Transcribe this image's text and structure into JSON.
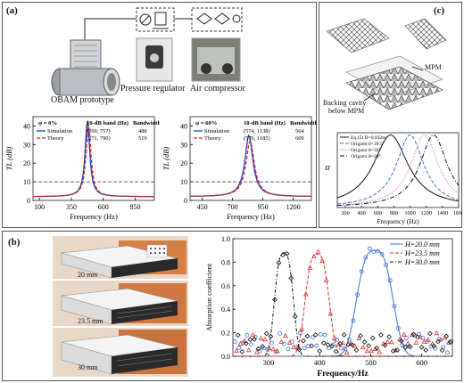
{
  "panel_a": {
    "label": "(a)",
    "prototype_label": "OBAM prototype",
    "regulator_label": "Pressure regulator",
    "compressor_label": "Air compressor"
  },
  "panel_b": {
    "label": "(b)",
    "photo_labels": [
      "20 mm",
      "23.5 mm",
      "30 mm"
    ]
  },
  "panel_c": {
    "label": "(c)",
    "mpm_label": "MPM",
    "backing_label_1": "Backing cavity",
    "backing_label_2": "below MPM"
  },
  "colors": {
    "simulation": "#1f3fbf",
    "theory": "#d62728",
    "threshold": "#333333",
    "blue": "#3b6fd6",
    "red": "#e03030",
    "black": "#111111",
    "orange": "#e08b2a",
    "pink": "#e58aa0"
  },
  "chart_data": [
    {
      "type": "line",
      "id": "tl-0",
      "ylabel": "TL (dB)",
      "xlabel": "Frequency (Hz)",
      "xlim": [
        50,
        1000
      ],
      "ylim": [
        0,
        45
      ],
      "xticks": [
        100,
        350,
        600,
        850
      ],
      "yticks": [
        0,
        10,
        20,
        30,
        40
      ],
      "threshold": 10,
      "table": {
        "headers": [
          "φ = 0%",
          "10-dB band (Hz)",
          "Bandwidth (Hz)"
        ],
        "rows": [
          {
            "name": "Simulation",
            "band": "(269, 757)",
            "bw": "488"
          },
          {
            "name": "Theory",
            "band": "(271, 790)",
            "bw": "519"
          }
        ]
      },
      "series": [
        {
          "name": "Simulation",
          "peak_x": 476,
          "peak_y": 43
        },
        {
          "name": "Theory",
          "peak_x": 484,
          "peak_y": 41
        }
      ]
    },
    {
      "type": "line",
      "id": "tl-60",
      "ylabel": "TL (dB)",
      "xlabel": "Frequency (Hz)",
      "xlim": [
        350,
        1350
      ],
      "ylim": [
        0,
        45
      ],
      "xticks": [
        450,
        700,
        950,
        1200
      ],
      "yticks": [
        0,
        10,
        20,
        30,
        40
      ],
      "threshold": 10,
      "table": {
        "headers": [
          "φ = 60%",
          "10-dB band (Hz)",
          "Bandwidth (Hz)"
        ],
        "rows": [
          {
            "name": "Simulation",
            "band": "(574, 1138)",
            "bw": "564"
          },
          {
            "name": "Theory",
            "band": "(576, 1185)",
            "bw": "609"
          }
        ]
      },
      "series": [
        {
          "name": "Simulation",
          "peak_x": 835,
          "peak_y": 35
        },
        {
          "name": "Theory",
          "peak_x": 845,
          "peak_y": 32
        }
      ]
    },
    {
      "type": "line",
      "id": "alpha-c",
      "ylabel": "α",
      "xlabel": "Frequency (Hz)",
      "xlim": [
        100,
        1600
      ],
      "ylim": [
        0,
        1
      ],
      "xticks": [
        200,
        400,
        600,
        800,
        1000,
        1200,
        1400,
        1600
      ],
      "series": [
        {
          "name": "Eq.(5) D=0.032m",
          "peak_x": 760
        },
        {
          "name": "Origami  θ=39.5°",
          "peak_x": 1000
        },
        {
          "name": "Origami  θ=30°",
          "peak_x": 1180
        },
        {
          "name": "Origami  θ=20°",
          "peak_x": 1290
        }
      ]
    },
    {
      "type": "scatter",
      "id": "absorption-b",
      "ylabel": "Absorption coefficient",
      "xlabel": "Frequency/Hz",
      "xlim": [
        230,
        660
      ],
      "ylim": [
        0,
        1
      ],
      "xticks": [
        300,
        400,
        500,
        600
      ],
      "yticks": [
        0.0,
        0.2,
        0.4,
        0.6,
        0.8,
        1.0
      ],
      "series": [
        {
          "name": "H=20.0 mm",
          "center": 508,
          "peak_y": 0.9
        },
        {
          "name": "H=23.5 mm",
          "center": 395,
          "peak_y": 0.87
        },
        {
          "name": "H=30.0 mm",
          "center": 330,
          "peak_y": 0.88
        }
      ]
    }
  ]
}
